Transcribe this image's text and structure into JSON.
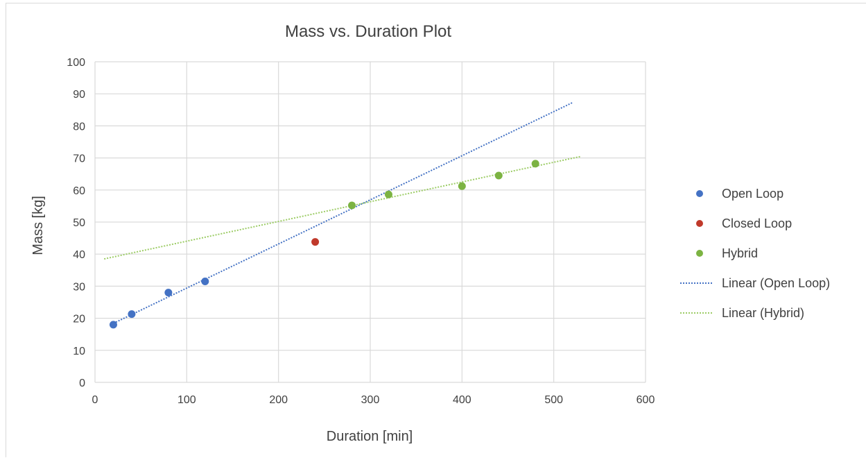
{
  "chart_data": {
    "type": "scatter",
    "title": "Mass vs. Duration Plot",
    "xlabel": "Duration [min]",
    "ylabel": "Mass [kg]",
    "xlim": [
      0,
      600
    ],
    "ylim": [
      0,
      100
    ],
    "xticks": [
      0,
      100,
      200,
      300,
      400,
      500,
      600
    ],
    "yticks": [
      0,
      10,
      20,
      30,
      40,
      50,
      60,
      70,
      80,
      90,
      100
    ],
    "grid": true,
    "legend_position": "right",
    "series": [
      {
        "name": "Open Loop",
        "color": "#4472c4",
        "points": [
          [
            20,
            18
          ],
          [
            40,
            21.3
          ],
          [
            80,
            28
          ],
          [
            120,
            31.5
          ]
        ]
      },
      {
        "name": "Closed Loop",
        "color": "#c0392b",
        "points": [
          [
            240,
            43.8
          ]
        ]
      },
      {
        "name": "Hybrid",
        "color": "#7cb342",
        "points": [
          [
            280,
            55.2
          ],
          [
            320,
            58.6
          ],
          [
            400,
            61.2
          ],
          [
            440,
            64.5
          ],
          [
            480,
            68.2
          ]
        ]
      }
    ],
    "trendlines": [
      {
        "name": "Linear (Open Loop)",
        "color": "#4472c4",
        "from": [
          20,
          18.4
        ],
        "to": [
          520,
          87.2
        ]
      },
      {
        "name": "Linear (Hybrid)",
        "color": "#9ccc65",
        "from": [
          10,
          38.5
        ],
        "to": [
          530,
          70.5
        ]
      }
    ]
  }
}
